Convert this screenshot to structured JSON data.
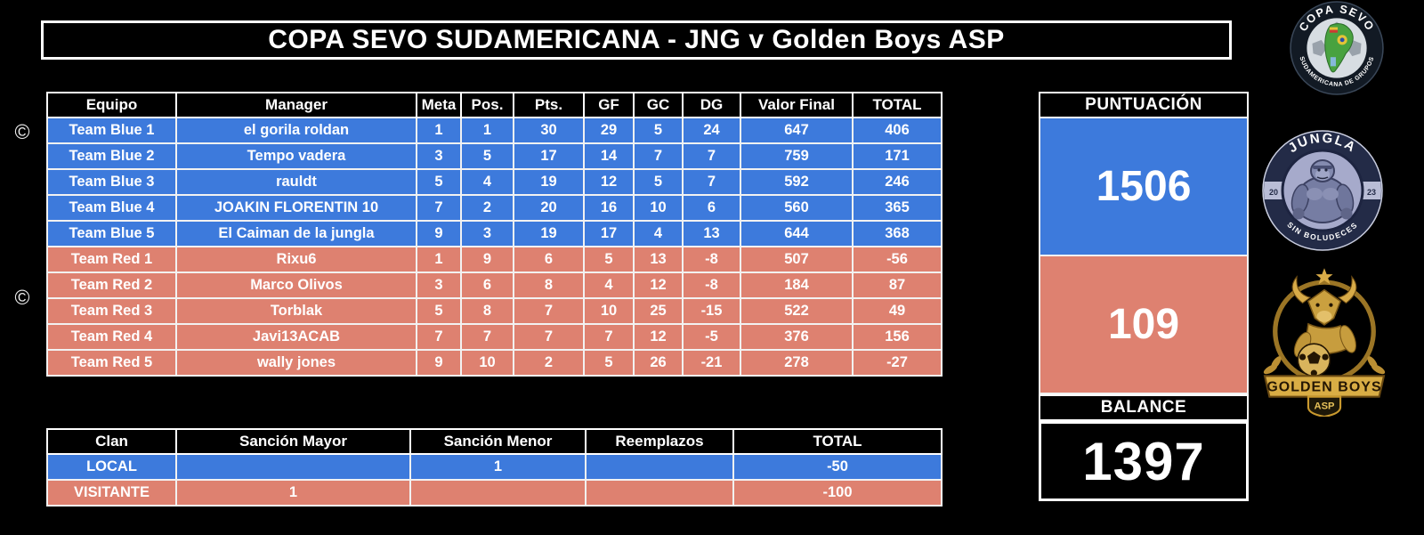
{
  "title": "COPA SEVO SUDAMERICANA - JNG v Golden Boys ASP",
  "captain_symbol": "©",
  "colors": {
    "blue": "#3D7ADC",
    "red": "#DE8170",
    "background": "#000000",
    "text": "#FFFFFF"
  },
  "standings_table": {
    "columns": [
      "Equipo",
      "Manager",
      "Meta",
      "Pos.",
      "Pts.",
      "GF",
      "GC",
      "DG",
      "Valor Final",
      "TOTAL"
    ],
    "rows": [
      {
        "side": "blue",
        "captain": true,
        "cells": [
          "Team Blue 1",
          "el gorila roldan",
          "1",
          "1",
          "30",
          "29",
          "5",
          "24",
          "647",
          "406"
        ]
      },
      {
        "side": "blue",
        "captain": false,
        "cells": [
          "Team Blue 2",
          "Tempo vadera",
          "3",
          "5",
          "17",
          "14",
          "7",
          "7",
          "759",
          "171"
        ]
      },
      {
        "side": "blue",
        "captain": false,
        "cells": [
          "Team Blue 3",
          "rauldt",
          "5",
          "4",
          "19",
          "12",
          "5",
          "7",
          "592",
          "246"
        ]
      },
      {
        "side": "blue",
        "captain": false,
        "cells": [
          "Team Blue 4",
          "JOAKIN FLORENTIN 10",
          "7",
          "2",
          "20",
          "16",
          "10",
          "6",
          "560",
          "365"
        ]
      },
      {
        "side": "blue",
        "captain": false,
        "cells": [
          "Team Blue 5",
          "El Caiman de la jungla",
          "9",
          "3",
          "19",
          "17",
          "4",
          "13",
          "644",
          "368"
        ]
      },
      {
        "side": "red",
        "captain": false,
        "cells": [
          "Team Red 1",
          "Rixu6",
          "1",
          "9",
          "6",
          "5",
          "13",
          "-8",
          "507",
          "-56"
        ]
      },
      {
        "side": "red",
        "captain": true,
        "cells": [
          "Team Red 2",
          "Marco Olivos",
          "3",
          "6",
          "8",
          "4",
          "12",
          "-8",
          "184",
          "87"
        ]
      },
      {
        "side": "red",
        "captain": false,
        "cells": [
          "Team Red 3",
          "Torblak",
          "5",
          "8",
          "7",
          "10",
          "25",
          "-15",
          "522",
          "49"
        ]
      },
      {
        "side": "red",
        "captain": false,
        "cells": [
          "Team Red 4",
          "Javi13ACAB",
          "7",
          "7",
          "7",
          "7",
          "12",
          "-5",
          "376",
          "156"
        ]
      },
      {
        "side": "red",
        "captain": false,
        "cells": [
          "Team Red 5",
          "wally jones",
          "9",
          "10",
          "2",
          "5",
          "26",
          "-21",
          "278",
          "-27"
        ]
      }
    ]
  },
  "sanctions_table": {
    "columns": [
      "Clan",
      "Sanción Mayor",
      "Sanción Menor",
      "Reemplazos",
      "TOTAL"
    ],
    "rows": [
      {
        "side": "blue",
        "cells": [
          "LOCAL",
          "",
          "1",
          "",
          "-50"
        ]
      },
      {
        "side": "red",
        "cells": [
          "VISITANTE",
          "1",
          "",
          "",
          "-100"
        ]
      }
    ]
  },
  "score_panel": {
    "title": "PUNTUACIÓN",
    "blue_score": "1506",
    "red_score": "109",
    "balance_label": "BALANCE",
    "balance_value": "1397"
  },
  "logos": {
    "copa_sevo": {
      "top_text": "COPA SEVO",
      "bottom_text": "SUDAMERICANA DE GRUPOS"
    },
    "jungla": {
      "top_text": "JUNGLA",
      "bottom_text": "SIN BOLUDECES",
      "year_left": "20",
      "year_right": "23"
    },
    "golden_boys": {
      "banner_text": "GOLDEN BOYS",
      "shield_text": "ASP"
    }
  }
}
